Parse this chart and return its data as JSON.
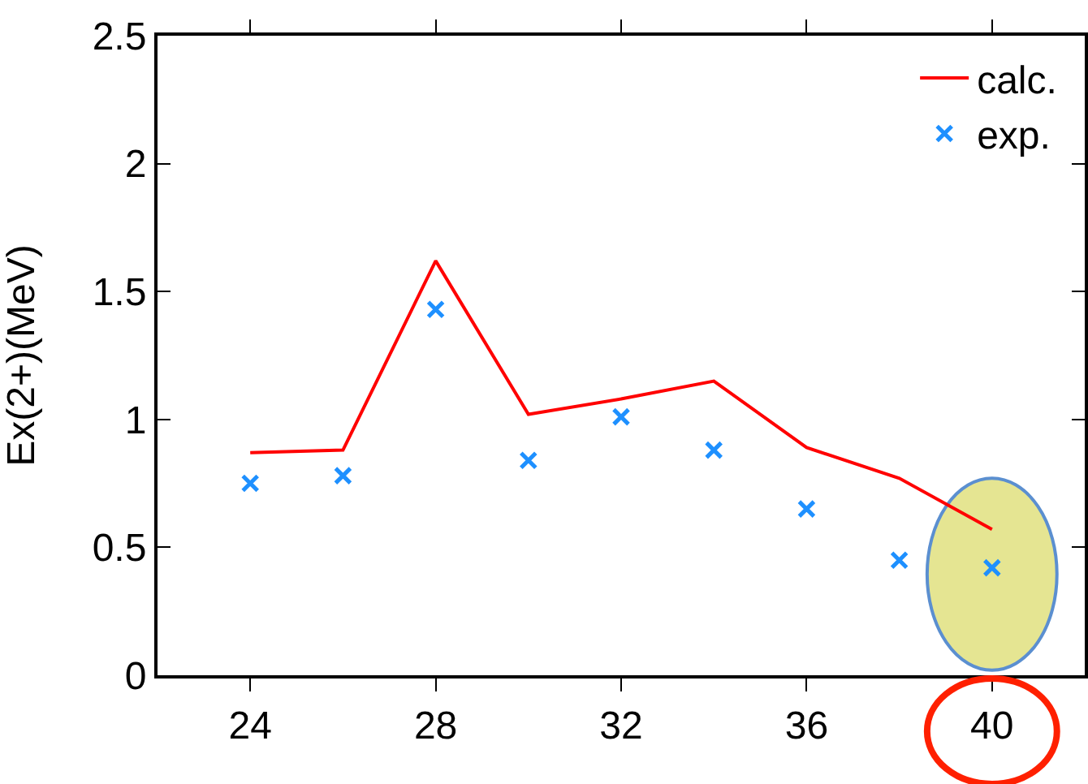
{
  "chart_data": {
    "type": "line",
    "ylabel": "Ex(2+)(MeV)",
    "x": [
      24,
      26,
      28,
      30,
      32,
      34,
      36,
      38,
      40
    ],
    "series": [
      {
        "name": "calc.",
        "color": "#ff0000",
        "values": [
          0.87,
          0.88,
          1.62,
          1.02,
          1.08,
          1.15,
          0.89,
          0.77,
          0.57
        ]
      },
      {
        "name": "exp.",
        "type": "scatter",
        "marker": "cross",
        "color": "#1e90ff",
        "values": [
          0.75,
          0.78,
          1.43,
          0.84,
          1.01,
          0.88,
          0.65,
          0.45,
          0.42
        ]
      }
    ],
    "xlim": [
      22,
      42
    ],
    "xticks": [
      24,
      28,
      32,
      36,
      40
    ],
    "ylim": [
      0,
      2.5
    ],
    "yticks": [
      0,
      0.5,
      1,
      1.5,
      2,
      2.5
    ],
    "grid": false,
    "legend": "top right"
  }
}
